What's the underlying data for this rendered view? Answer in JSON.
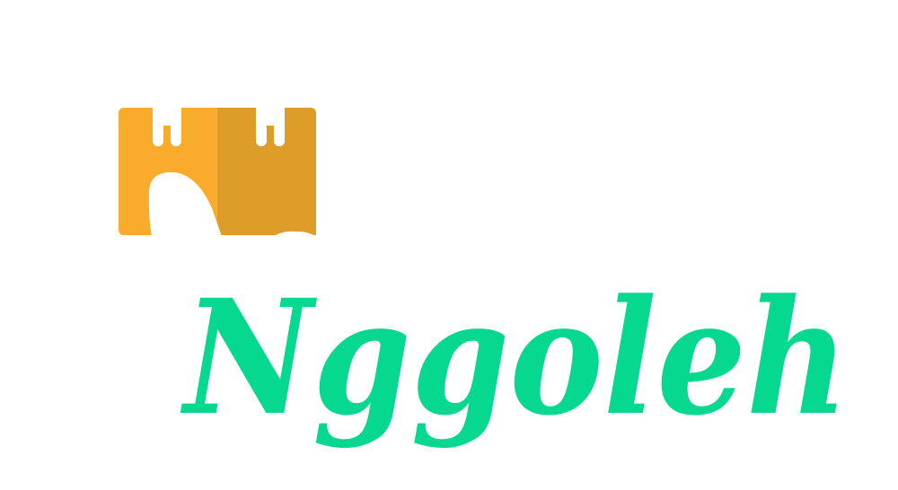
{
  "logo": {
    "wordmark": "Nggoleh",
    "icon": "castle-tower-with-pointing-hand-icon",
    "colors": {
      "tower_light": "#F9AB2B",
      "tower_dark": "#DE9C28",
      "wordmark": "#06D88F",
      "background": "#FFFFFF"
    }
  }
}
